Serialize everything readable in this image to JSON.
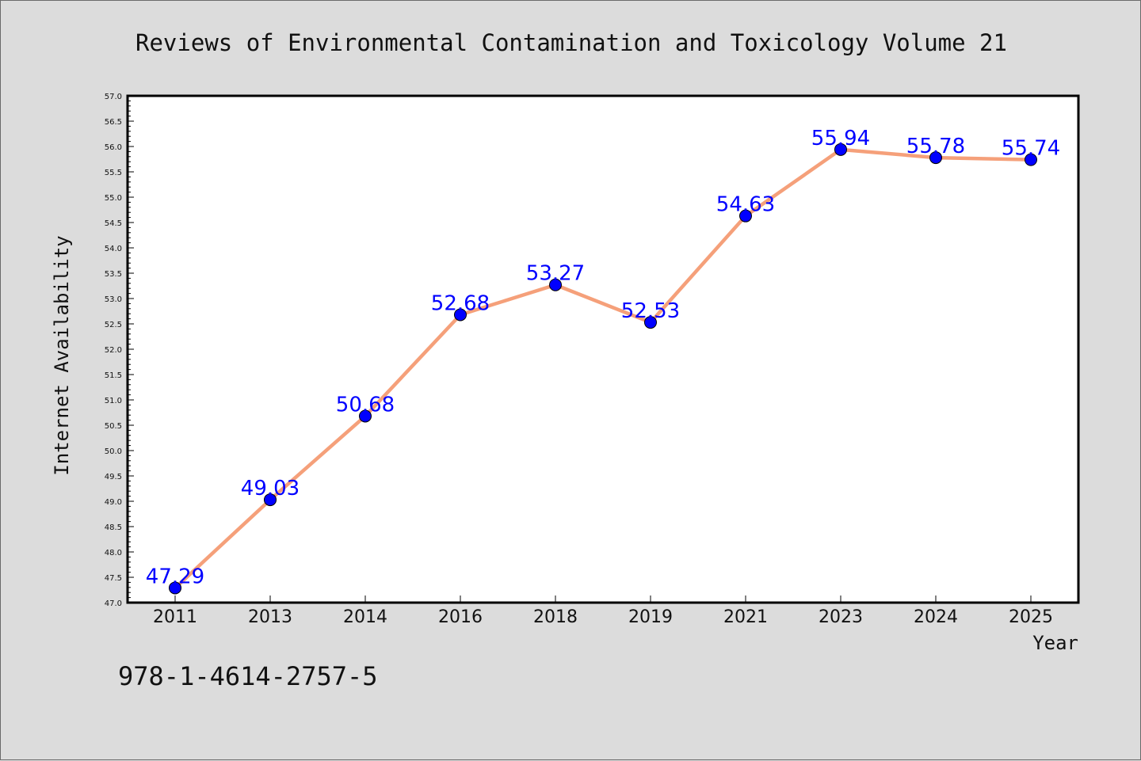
{
  "chart_data": {
    "type": "line",
    "title": "Reviews of Environmental Contamination and Toxicology Volume 21",
    "xlabel": "Year",
    "ylabel": "Internet Availability",
    "categories": [
      "2011",
      "2013",
      "2014",
      "2016",
      "2018",
      "2019",
      "2021",
      "2023",
      "2024",
      "2025"
    ],
    "series": [
      {
        "values": [
          47.29,
          49.03,
          50.68,
          52.68,
          53.27,
          52.53,
          54.63,
          55.94,
          55.78,
          55.74
        ],
        "data_labels": [
          "47.29",
          "49.03",
          "50.68",
          "52.68",
          "53.27",
          "52.53",
          "54.63",
          "55.94",
          "55.78",
          "55.74"
        ],
        "line_color": "#f5a07a",
        "marker_color": "#0000ff"
      }
    ],
    "ylim": [
      47.0,
      57.0
    ],
    "y_ticks": [
      "47.0",
      "47.5",
      "48.0",
      "48.5",
      "49.0",
      "49.5",
      "50.0",
      "50.5",
      "51.0",
      "51.5",
      "52.0",
      "52.5",
      "53.0",
      "53.5",
      "54.0",
      "54.5",
      "55.0",
      "55.5",
      "56.0",
      "56.5",
      "57.0"
    ],
    "grid": false,
    "legend": "none"
  },
  "footnote": "978-1-4614-2757-5",
  "colors": {
    "background": "#dcdcdc",
    "plot_background": "#ffffff",
    "line": "#f5a07a",
    "marker": "#0000ff",
    "data_label": "#0000ff"
  }
}
